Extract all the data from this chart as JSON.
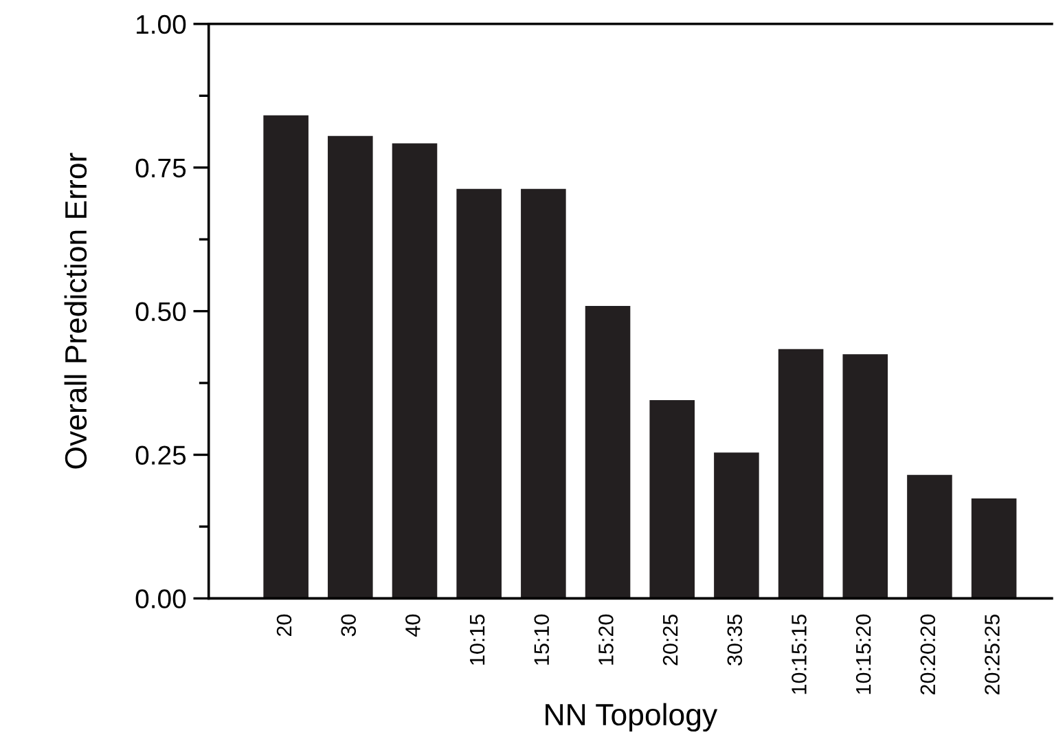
{
  "chart_data": {
    "type": "bar",
    "xlabel": "NN Topology",
    "ylabel": "Overall Prediction Error",
    "categories": [
      "20",
      "30",
      "40",
      "10:15",
      "15:10",
      "15:20",
      "20:25",
      "30:35",
      "10:15:15",
      "10:15:20",
      "20:20:20",
      "20:25:25"
    ],
    "values": [
      0.841,
      0.805,
      0.792,
      0.713,
      0.713,
      0.509,
      0.345,
      0.254,
      0.434,
      0.425,
      0.215,
      0.174
    ],
    "color": "#231f20",
    "ylim": [
      0,
      1
    ],
    "yticks": [
      "0.00",
      {
        "value": 0.125,
        "label": null
      },
      {
        "value": 0.25,
        "label": "0.25"
      },
      {
        "value": 0.375,
        "label": null
      },
      {
        "value": 0.5,
        "label": "0.50"
      },
      {
        "value": 0.625,
        "label": null
      },
      {
        "value": 0.75,
        "label": "0.75"
      },
      {
        "value": 0.875,
        "label": null
      },
      {
        "value": 1,
        "label": "1.00"
      }
    ],
    "grid": false
  }
}
